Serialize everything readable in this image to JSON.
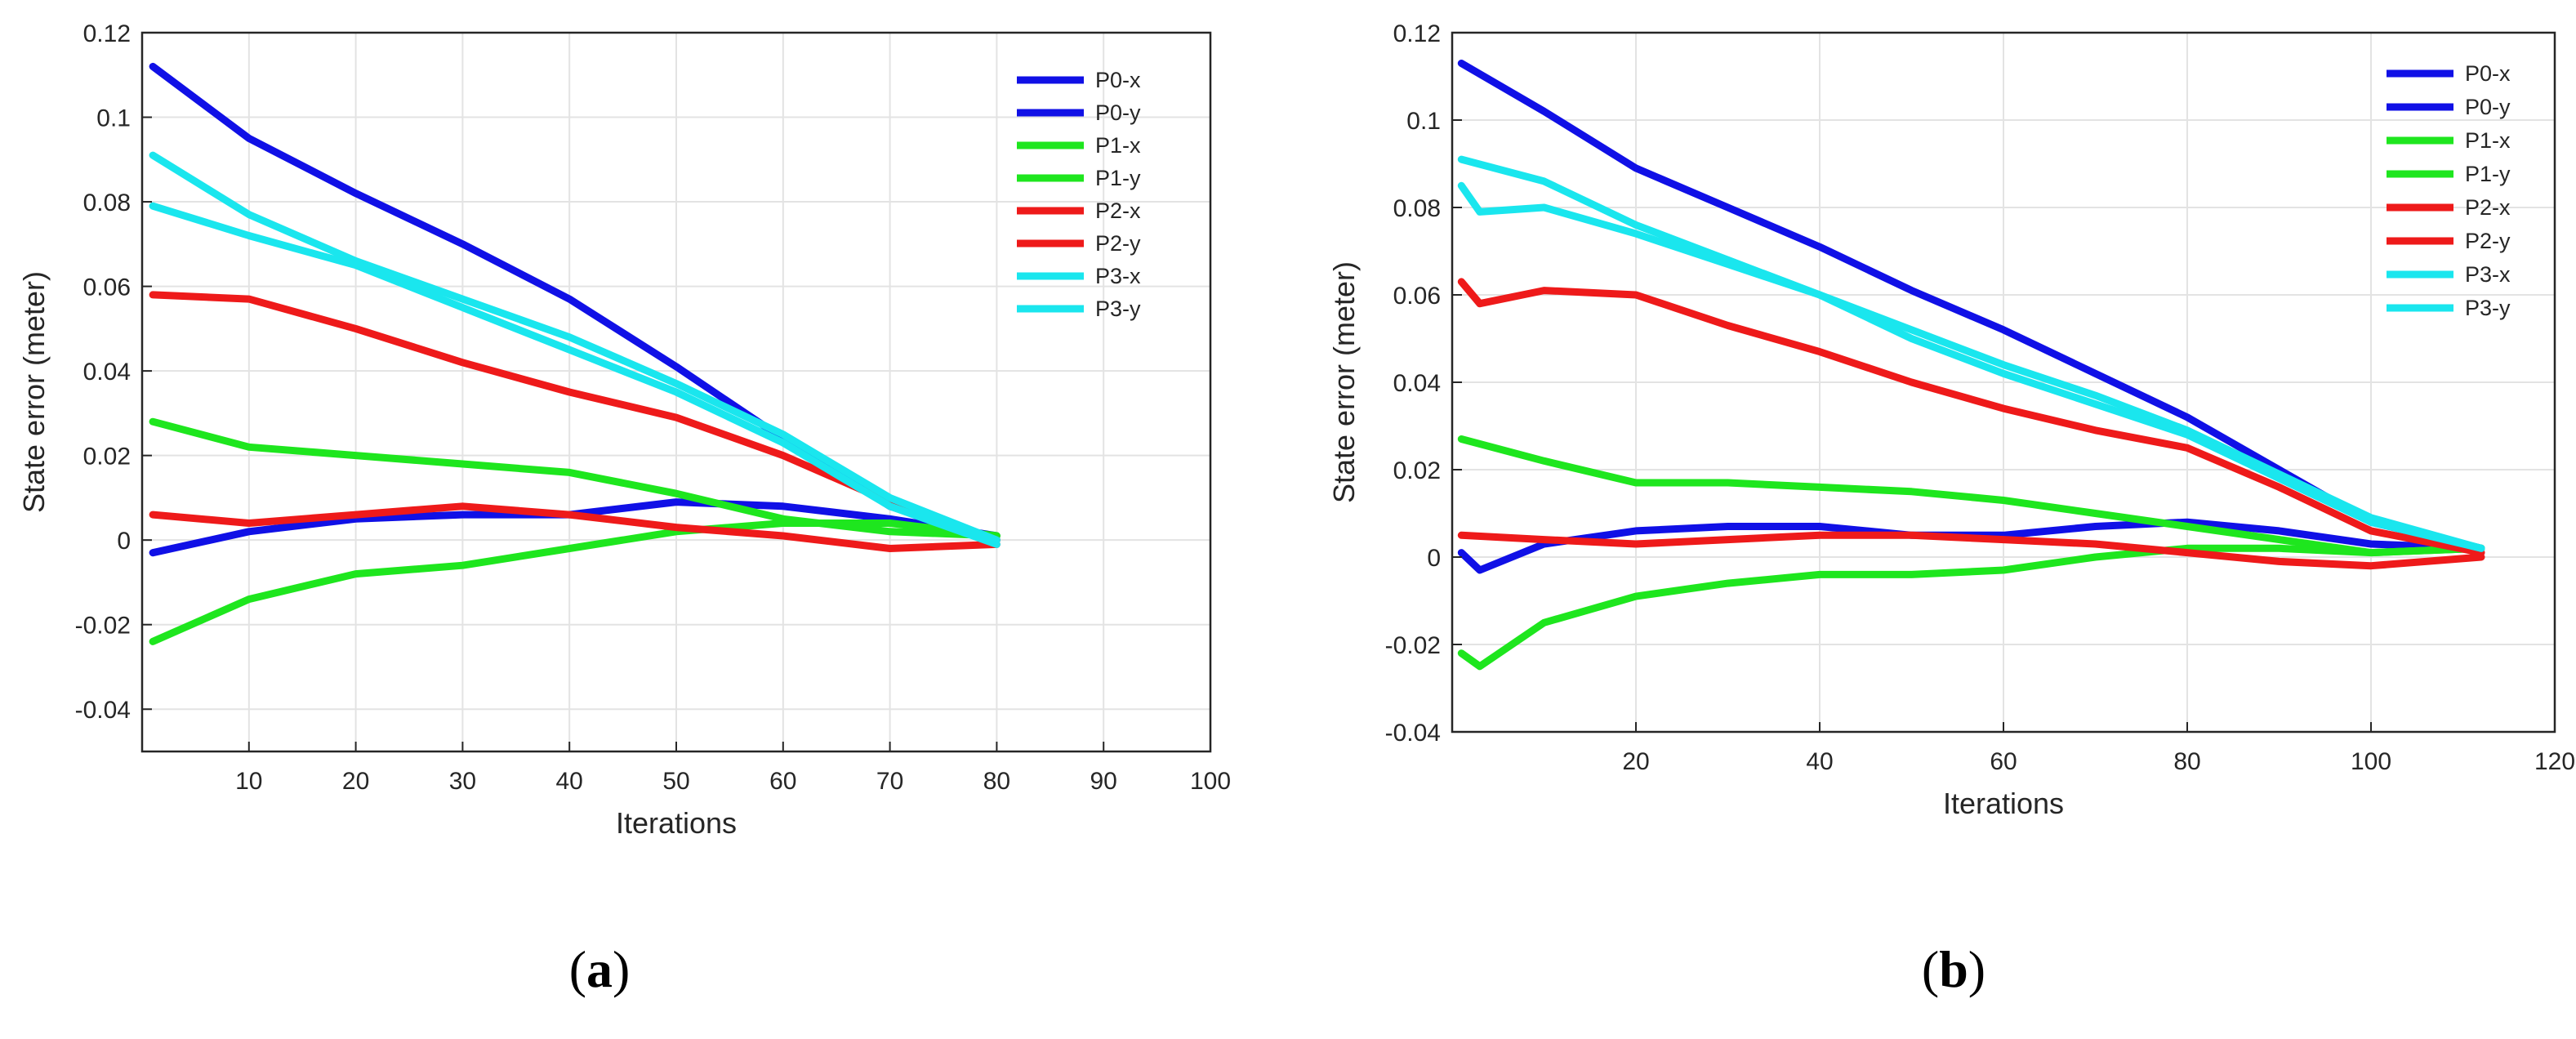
{
  "figure": {
    "panels": [
      {
        "label_open": "(",
        "label_letter": "a",
        "label_close": ")"
      },
      {
        "label_open": "(",
        "label_letter": "b",
        "label_close": ")"
      }
    ]
  },
  "chart_data": [
    {
      "type": "line",
      "panel": "a",
      "xlabel": "Iterations",
      "ylabel": "State error (meter)",
      "xlim": [
        0,
        100
      ],
      "ylim": [
        -0.05,
        0.12
      ],
      "xticks": [
        10,
        20,
        30,
        40,
        50,
        60,
        70,
        80,
        90,
        100
      ],
      "xtick_labels": [
        "10",
        "20",
        "30",
        "40",
        "50",
        "60",
        "70",
        "80",
        "90",
        "100"
      ],
      "yticks": [
        -0.04,
        -0.02,
        0,
        0.02,
        0.04,
        0.06,
        0.08,
        0.1,
        0.12
      ],
      "ytick_labels": [
        "-0.04",
        "-0.02",
        "0",
        "0.02",
        "0.04",
        "0.06",
        "0.08",
        "0.1",
        "0.12"
      ],
      "grid": true,
      "legend_position": "top-right",
      "series": [
        {
          "name": "P0-x",
          "color": "#1010e6",
          "x": [
            1,
            10,
            20,
            30,
            40,
            50,
            60,
            70,
            80
          ],
          "y": [
            0.112,
            0.095,
            0.082,
            0.07,
            0.057,
            0.041,
            0.024,
            0.008,
            0.0
          ]
        },
        {
          "name": "P0-y",
          "color": "#1010e6",
          "x": [
            1,
            10,
            20,
            30,
            40,
            50,
            60,
            70,
            80
          ],
          "y": [
            -0.003,
            0.002,
            0.005,
            0.006,
            0.006,
            0.009,
            0.008,
            0.005,
            0.001
          ]
        },
        {
          "name": "P1-x",
          "color": "#1ee61e",
          "x": [
            1,
            10,
            20,
            30,
            40,
            50,
            60,
            70,
            80
          ],
          "y": [
            0.028,
            0.022,
            0.02,
            0.018,
            0.016,
            0.011,
            0.005,
            0.002,
            0.001
          ]
        },
        {
          "name": "P1-y",
          "color": "#1ee61e",
          "x": [
            1,
            10,
            20,
            30,
            40,
            50,
            60,
            70,
            80
          ],
          "y": [
            -0.024,
            -0.014,
            -0.008,
            -0.006,
            -0.002,
            0.002,
            0.004,
            0.004,
            0.001
          ]
        },
        {
          "name": "P2-x",
          "color": "#ee1a1a",
          "x": [
            1,
            10,
            20,
            30,
            40,
            50,
            60,
            70,
            80
          ],
          "y": [
            0.058,
            0.057,
            0.05,
            0.042,
            0.035,
            0.029,
            0.02,
            0.009,
            0.0
          ]
        },
        {
          "name": "P2-y",
          "color": "#ee1a1a",
          "x": [
            1,
            10,
            20,
            30,
            40,
            50,
            60,
            70,
            80
          ],
          "y": [
            0.006,
            0.004,
            0.006,
            0.008,
            0.006,
            0.003,
            0.001,
            -0.002,
            -0.001
          ]
        },
        {
          "name": "P3-x",
          "color": "#1ae6ee",
          "x": [
            1,
            10,
            20,
            30,
            40,
            50,
            60,
            70,
            80
          ],
          "y": [
            0.091,
            0.077,
            0.066,
            0.057,
            0.048,
            0.037,
            0.025,
            0.01,
            0.0
          ]
        },
        {
          "name": "P3-y",
          "color": "#1ae6ee",
          "x": [
            1,
            10,
            20,
            30,
            40,
            50,
            60,
            70,
            80
          ],
          "y": [
            0.079,
            0.072,
            0.065,
            0.055,
            0.045,
            0.035,
            0.023,
            0.008,
            -0.001
          ]
        }
      ]
    },
    {
      "type": "line",
      "panel": "b",
      "xlabel": "Iterations",
      "ylabel": "State error (meter)",
      "xlim": [
        0,
        120
      ],
      "ylim": [
        -0.04,
        0.12
      ],
      "xticks": [
        20,
        40,
        60,
        80,
        100,
        120
      ],
      "xtick_labels": [
        "20",
        "40",
        "60",
        "80",
        "100",
        "120"
      ],
      "yticks": [
        -0.04,
        -0.02,
        0,
        0.02,
        0.04,
        0.06,
        0.08,
        0.1,
        0.12
      ],
      "ytick_labels": [
        "-0.04",
        "-0.02",
        "0",
        "0.02",
        "0.04",
        "0.06",
        "0.08",
        "0.1",
        "0.12"
      ],
      "grid": true,
      "legend_position": "top-right",
      "series": [
        {
          "name": "P0-x",
          "color": "#1010e6",
          "x": [
            1,
            10,
            20,
            30,
            40,
            50,
            60,
            70,
            80,
            90,
            100,
            112
          ],
          "y": [
            0.113,
            0.102,
            0.089,
            0.08,
            0.071,
            0.061,
            0.052,
            0.042,
            0.032,
            0.02,
            0.008,
            0.002
          ]
        },
        {
          "name": "P0-y",
          "color": "#1010e6",
          "x": [
            1,
            3,
            10,
            20,
            30,
            40,
            50,
            60,
            70,
            80,
            90,
            100,
            112
          ],
          "y": [
            0.001,
            -0.003,
            0.003,
            0.006,
            0.007,
            0.007,
            0.005,
            0.005,
            0.007,
            0.008,
            0.006,
            0.003,
            0.002
          ]
        },
        {
          "name": "P1-x",
          "color": "#1ee61e",
          "x": [
            1,
            10,
            20,
            30,
            40,
            50,
            60,
            70,
            80,
            90,
            100,
            112
          ],
          "y": [
            0.027,
            0.022,
            0.017,
            0.017,
            0.016,
            0.015,
            0.013,
            0.01,
            0.007,
            0.004,
            0.001,
            0.002
          ]
        },
        {
          "name": "P1-y",
          "color": "#1ee61e",
          "x": [
            1,
            3,
            10,
            20,
            30,
            40,
            50,
            60,
            70,
            80,
            90,
            100,
            112
          ],
          "y": [
            -0.022,
            -0.025,
            -0.015,
            -0.009,
            -0.006,
            -0.004,
            -0.004,
            -0.003,
            0.0,
            0.002,
            0.002,
            0.001,
            0.002
          ]
        },
        {
          "name": "P2-x",
          "color": "#ee1a1a",
          "x": [
            1,
            3,
            10,
            20,
            30,
            40,
            50,
            60,
            70,
            80,
            90,
            100,
            112
          ],
          "y": [
            0.063,
            0.058,
            0.061,
            0.06,
            0.053,
            0.047,
            0.04,
            0.034,
            0.029,
            0.025,
            0.016,
            0.006,
            0.001
          ]
        },
        {
          "name": "P2-y",
          "color": "#ee1a1a",
          "x": [
            1,
            10,
            20,
            30,
            40,
            50,
            60,
            70,
            80,
            90,
            100,
            112
          ],
          "y": [
            0.005,
            0.004,
            0.003,
            0.004,
            0.005,
            0.005,
            0.004,
            0.003,
            0.001,
            -0.001,
            -0.002,
            0.0
          ]
        },
        {
          "name": "P3-x",
          "color": "#1ae6ee",
          "x": [
            1,
            10,
            20,
            30,
            40,
            50,
            60,
            70,
            80,
            90,
            100,
            112
          ],
          "y": [
            0.091,
            0.086,
            0.076,
            0.068,
            0.06,
            0.052,
            0.044,
            0.037,
            0.029,
            0.019,
            0.009,
            0.002
          ]
        },
        {
          "name": "P3-y",
          "color": "#1ae6ee",
          "x": [
            1,
            3,
            10,
            20,
            30,
            40,
            50,
            60,
            70,
            80,
            90,
            100,
            112
          ],
          "y": [
            0.085,
            0.079,
            0.08,
            0.074,
            0.067,
            0.06,
            0.05,
            0.042,
            0.035,
            0.028,
            0.018,
            0.008,
            0.002
          ]
        }
      ]
    }
  ]
}
